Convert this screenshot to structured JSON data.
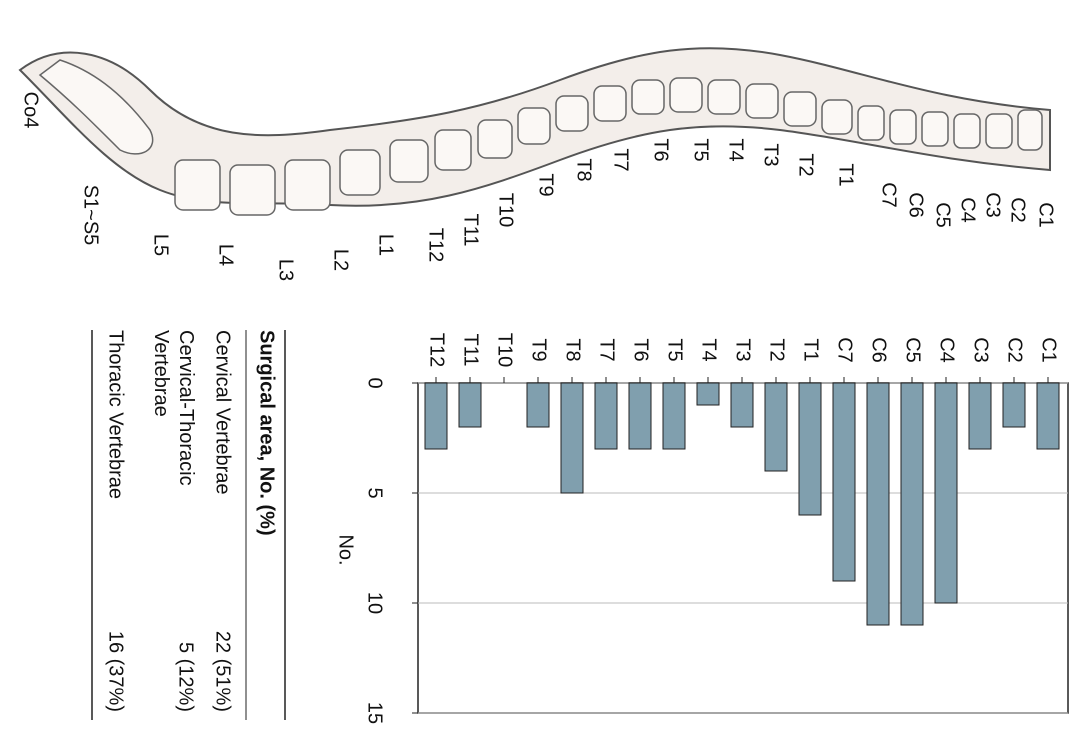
{
  "spine_labels": [
    "C1",
    "C2",
    "C3",
    "C4",
    "C5",
    "C6",
    "C7",
    "T1",
    "T2",
    "T3",
    "T4",
    "T5",
    "T6",
    "T7",
    "T8",
    "T9",
    "T10",
    "T11",
    "T12",
    "L1",
    "L2",
    "L3",
    "L4",
    "L5",
    "S1~S5",
    "Co4"
  ],
  "chart_data": {
    "type": "bar",
    "ylabel": "No.",
    "categories": [
      "C1",
      "C2",
      "C3",
      "C4",
      "C5",
      "C6",
      "C7",
      "T1",
      "T2",
      "T3",
      "T4",
      "T5",
      "T6",
      "T7",
      "T8",
      "T9",
      "T10",
      "T11",
      "T12"
    ],
    "values": [
      3,
      2,
      3,
      10,
      11,
      11,
      9,
      6,
      4,
      2,
      1,
      3,
      3,
      3,
      5,
      2,
      0,
      2,
      3
    ],
    "color": "#809fae",
    "ylim": [
      0,
      15
    ],
    "yticks": [
      0,
      5,
      10,
      15
    ],
    "grid": true
  },
  "table": {
    "header": "Surgical area, No. (%)",
    "rows": [
      [
        "Cervical Vertebrae",
        "22 (51%)"
      ],
      [
        "Cervical-Thoracic Vertebrae",
        "5 (12%)"
      ],
      [
        "Thoracic Vertebrae",
        "16 (37%)"
      ]
    ]
  }
}
